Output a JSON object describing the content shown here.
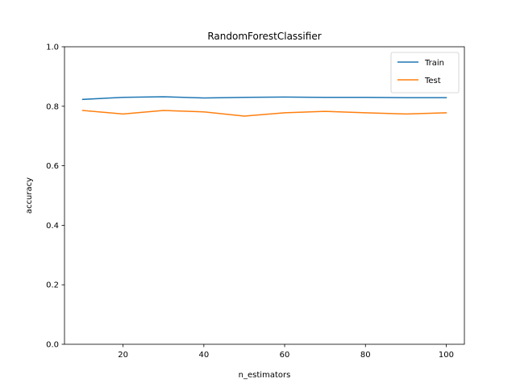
{
  "chart_data": {
    "type": "line",
    "title": "RandomForestClassifier",
    "xlabel": "n_estimators",
    "ylabel": "accuracy",
    "xlim": [
      5.5,
      104.5
    ],
    "ylim": [
      0.0,
      1.0
    ],
    "x_ticks": [
      20,
      40,
      60,
      80,
      100
    ],
    "y_ticks": [
      0.0,
      0.2,
      0.4,
      0.6,
      0.8,
      1.0
    ],
    "x_tick_labels": [
      "20",
      "40",
      "60",
      "80",
      "100"
    ],
    "y_tick_labels": [
      "0.0",
      "0.2",
      "0.4",
      "0.6",
      "0.8",
      "1.0"
    ],
    "x": [
      10,
      20,
      30,
      40,
      50,
      60,
      70,
      80,
      90,
      100
    ],
    "series": [
      {
        "name": "Train",
        "color": "#1f77b4",
        "values": [
          0.823,
          0.83,
          0.832,
          0.828,
          0.83,
          0.831,
          0.83,
          0.83,
          0.829,
          0.829
        ]
      },
      {
        "name": "Test",
        "color": "#ff7f0e",
        "values": [
          0.786,
          0.774,
          0.786,
          0.781,
          0.767,
          0.778,
          0.783,
          0.778,
          0.774,
          0.778
        ]
      }
    ],
    "legend_position": "top-right",
    "grid": false
  }
}
